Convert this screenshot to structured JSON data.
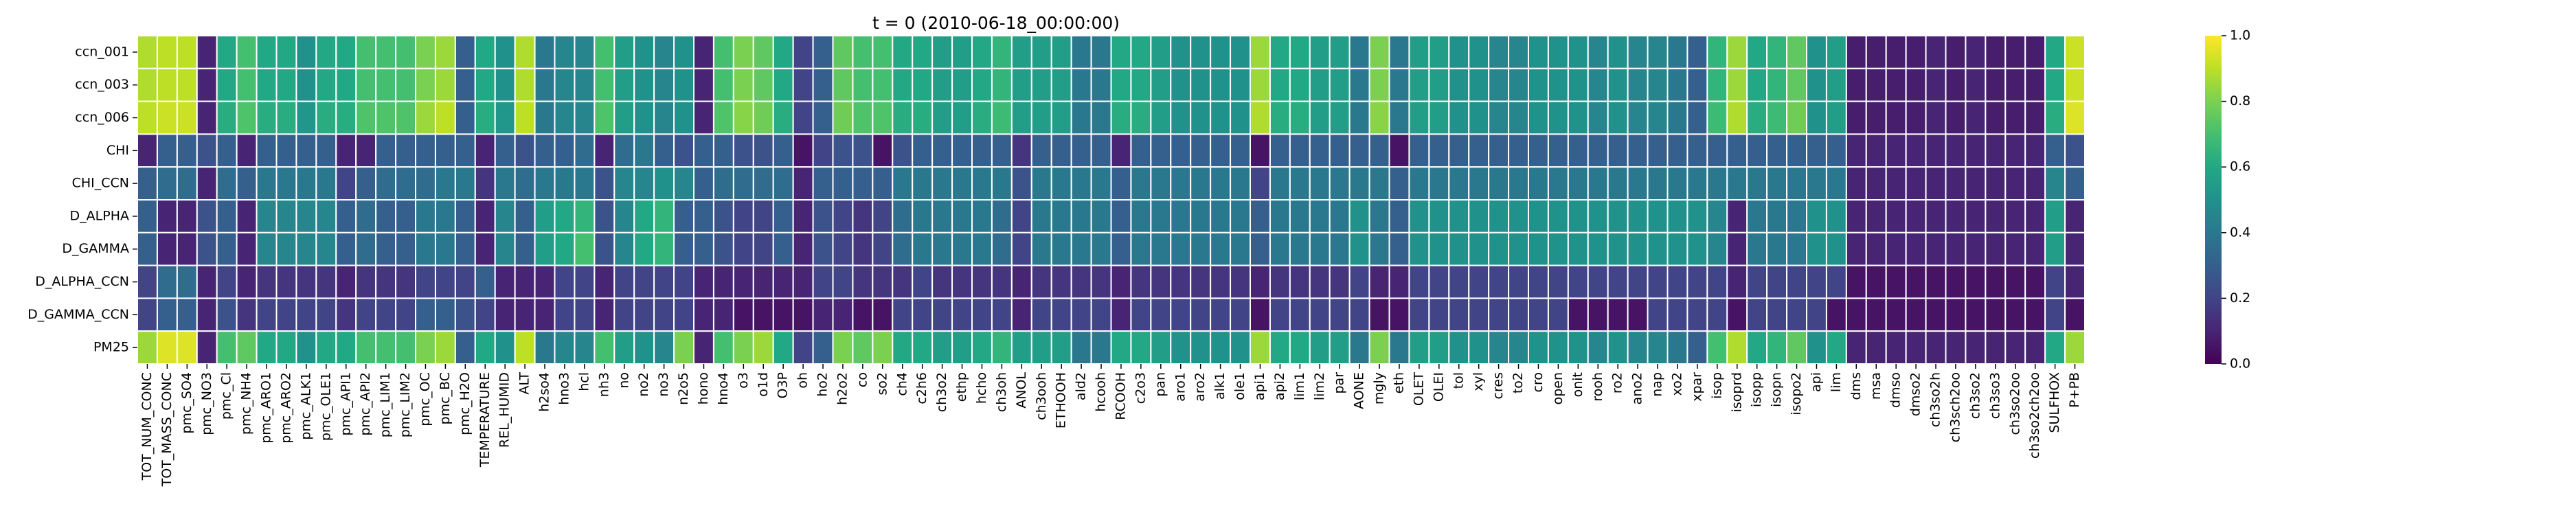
{
  "chart_data": {
    "type": "heatmap",
    "title": "t = 0 (2010-06-18_00:00:00)",
    "rows": [
      "ccn_001",
      "ccn_003",
      "ccn_006",
      "CHI",
      "CHI_CCN",
      "D_ALPHA",
      "D_GAMMA",
      "D_ALPHA_CCN",
      "D_GAMMA_CCN",
      "PM25"
    ],
    "columns": [
      "TOT_NUM_CONC",
      "TOT_MASS_CONC",
      "pmc_SO4",
      "pmc_NO3",
      "pmc_Cl",
      "pmc_NH4",
      "pmc_ARO1",
      "pmc_ARO2",
      "pmc_ALK1",
      "pmc_OLE1",
      "pmc_API1",
      "pmc_API2",
      "pmc_LIM1",
      "pmc_LIM2",
      "pmc_OC",
      "pmc_BC",
      "pmc_H2O",
      "TEMPERATURE",
      "REL_HUMID",
      "ALT",
      "h2so4",
      "hno3",
      "hcl",
      "nh3",
      "no",
      "no2",
      "no3",
      "n2o5",
      "hono",
      "hno4",
      "o3",
      "o1d",
      "O3P",
      "oh",
      "ho2",
      "h2o2",
      "co",
      "so2",
      "ch4",
      "c2h6",
      "ch3o2",
      "ethp",
      "hcho",
      "ch3oh",
      "ANOL",
      "ch3ooh",
      "ETHOOH",
      "ald2",
      "hcooh",
      "RCOOH",
      "c2o3",
      "pan",
      "aro1",
      "aro2",
      "alk1",
      "ole1",
      "api1",
      "api2",
      "lim1",
      "lim2",
      "par",
      "AONE",
      "mgly",
      "eth",
      "OLET",
      "OLEI",
      "tol",
      "xyl",
      "cres",
      "to2",
      "cro",
      "open",
      "onit",
      "rooh",
      "ro2",
      "ano2",
      "nap",
      "xo2",
      "xpar",
      "isop",
      "isoprd",
      "isopp",
      "isopn",
      "isopo2",
      "api",
      "lim",
      "dms",
      "msa",
      "dmso",
      "dmso2",
      "ch3so2h",
      "ch3sch2oo",
      "ch3so2",
      "ch3so3",
      "ch3so2oo",
      "ch3so2ch2oo",
      "SULFHOX",
      "P+PB"
    ],
    "values": [
      [
        0.88,
        0.9,
        0.9,
        0.1,
        0.6,
        0.7,
        0.6,
        0.6,
        0.5,
        0.6,
        0.6,
        0.7,
        0.7,
        0.7,
        0.8,
        0.85,
        0.3,
        0.6,
        0.5,
        0.88,
        0.4,
        0.45,
        0.45,
        0.7,
        0.55,
        0.5,
        0.45,
        0.5,
        0.1,
        0.7,
        0.8,
        0.75,
        0.6,
        0.2,
        0.3,
        0.75,
        0.7,
        0.7,
        0.6,
        0.6,
        0.55,
        0.55,
        0.6,
        0.65,
        0.55,
        0.55,
        0.55,
        0.4,
        0.4,
        0.6,
        0.6,
        0.55,
        0.5,
        0.5,
        0.5,
        0.5,
        0.85,
        0.6,
        0.6,
        0.55,
        0.55,
        0.4,
        0.8,
        0.4,
        0.55,
        0.55,
        0.5,
        0.5,
        0.45,
        0.45,
        0.5,
        0.5,
        0.5,
        0.45,
        0.5,
        0.45,
        0.45,
        0.4,
        0.3,
        0.65,
        0.85,
        0.6,
        0.65,
        0.75,
        0.5,
        0.55,
        0.08,
        0.08,
        0.08,
        0.08,
        0.1,
        0.08,
        0.1,
        0.08,
        0.08,
        0.08,
        0.6,
        0.92
      ],
      [
        0.88,
        0.9,
        0.9,
        0.1,
        0.6,
        0.7,
        0.6,
        0.6,
        0.5,
        0.6,
        0.6,
        0.7,
        0.7,
        0.7,
        0.8,
        0.85,
        0.3,
        0.6,
        0.5,
        0.88,
        0.4,
        0.45,
        0.45,
        0.7,
        0.55,
        0.5,
        0.45,
        0.5,
        0.1,
        0.7,
        0.8,
        0.75,
        0.6,
        0.2,
        0.3,
        0.75,
        0.7,
        0.7,
        0.6,
        0.6,
        0.55,
        0.55,
        0.6,
        0.65,
        0.55,
        0.55,
        0.55,
        0.4,
        0.4,
        0.6,
        0.6,
        0.55,
        0.5,
        0.5,
        0.5,
        0.5,
        0.85,
        0.6,
        0.6,
        0.55,
        0.55,
        0.4,
        0.8,
        0.4,
        0.55,
        0.55,
        0.5,
        0.5,
        0.45,
        0.45,
        0.5,
        0.5,
        0.5,
        0.45,
        0.5,
        0.45,
        0.45,
        0.4,
        0.3,
        0.65,
        0.85,
        0.6,
        0.65,
        0.75,
        0.5,
        0.55,
        0.08,
        0.08,
        0.08,
        0.08,
        0.1,
        0.08,
        0.1,
        0.08,
        0.08,
        0.08,
        0.6,
        0.92
      ],
      [
        0.9,
        0.92,
        0.92,
        0.1,
        0.62,
        0.72,
        0.62,
        0.62,
        0.52,
        0.62,
        0.62,
        0.72,
        0.72,
        0.72,
        0.85,
        0.9,
        0.3,
        0.62,
        0.52,
        0.9,
        0.4,
        0.45,
        0.45,
        0.72,
        0.55,
        0.5,
        0.45,
        0.5,
        0.1,
        0.72,
        0.82,
        0.78,
        0.62,
        0.2,
        0.3,
        0.78,
        0.72,
        0.72,
        0.62,
        0.62,
        0.55,
        0.55,
        0.62,
        0.68,
        0.55,
        0.55,
        0.55,
        0.4,
        0.4,
        0.62,
        0.62,
        0.55,
        0.5,
        0.5,
        0.5,
        0.5,
        0.88,
        0.62,
        0.62,
        0.55,
        0.55,
        0.4,
        0.82,
        0.4,
        0.55,
        0.55,
        0.5,
        0.5,
        0.45,
        0.45,
        0.5,
        0.5,
        0.5,
        0.45,
        0.5,
        0.45,
        0.45,
        0.4,
        0.3,
        0.68,
        0.88,
        0.62,
        0.68,
        0.78,
        0.5,
        0.55,
        0.08,
        0.08,
        0.08,
        0.08,
        0.1,
        0.08,
        0.1,
        0.08,
        0.08,
        0.08,
        0.62,
        0.95
      ],
      [
        0.1,
        0.3,
        0.3,
        0.25,
        0.3,
        0.1,
        0.3,
        0.3,
        0.3,
        0.3,
        0.1,
        0.1,
        0.3,
        0.3,
        0.3,
        0.3,
        0.3,
        0.1,
        0.3,
        0.25,
        0.3,
        0.3,
        0.35,
        0.1,
        0.35,
        0.4,
        0.3,
        0.25,
        0.3,
        0.3,
        0.25,
        0.25,
        0.3,
        0.05,
        0.2,
        0.25,
        0.25,
        0.05,
        0.25,
        0.3,
        0.3,
        0.3,
        0.3,
        0.3,
        0.15,
        0.3,
        0.3,
        0.3,
        0.3,
        0.1,
        0.3,
        0.3,
        0.3,
        0.3,
        0.3,
        0.3,
        0.05,
        0.3,
        0.3,
        0.3,
        0.3,
        0.3,
        0.3,
        0.05,
        0.3,
        0.3,
        0.3,
        0.3,
        0.3,
        0.3,
        0.3,
        0.3,
        0.3,
        0.3,
        0.3,
        0.3,
        0.3,
        0.3,
        0.3,
        0.3,
        0.3,
        0.3,
        0.3,
        0.3,
        0.3,
        0.3,
        0.1,
        0.1,
        0.1,
        0.1,
        0.1,
        0.1,
        0.1,
        0.1,
        0.1,
        0.1,
        0.3,
        0.25
      ],
      [
        0.3,
        0.35,
        0.35,
        0.1,
        0.35,
        0.3,
        0.4,
        0.4,
        0.4,
        0.4,
        0.2,
        0.3,
        0.35,
        0.35,
        0.35,
        0.4,
        0.4,
        0.15,
        0.4,
        0.35,
        0.4,
        0.4,
        0.4,
        0.25,
        0.45,
        0.45,
        0.5,
        0.45,
        0.3,
        0.35,
        0.35,
        0.35,
        0.35,
        0.1,
        0.3,
        0.3,
        0.3,
        0.3,
        0.4,
        0.4,
        0.4,
        0.4,
        0.4,
        0.4,
        0.25,
        0.4,
        0.4,
        0.4,
        0.4,
        0.3,
        0.4,
        0.4,
        0.4,
        0.4,
        0.4,
        0.4,
        0.2,
        0.4,
        0.4,
        0.4,
        0.4,
        0.4,
        0.4,
        0.3,
        0.4,
        0.4,
        0.4,
        0.4,
        0.4,
        0.4,
        0.4,
        0.4,
        0.4,
        0.4,
        0.4,
        0.4,
        0.4,
        0.4,
        0.4,
        0.4,
        0.4,
        0.4,
        0.4,
        0.4,
        0.4,
        0.4,
        0.1,
        0.1,
        0.1,
        0.1,
        0.1,
        0.1,
        0.1,
        0.1,
        0.1,
        0.1,
        0.45,
        0.3
      ],
      [
        0.3,
        0.1,
        0.1,
        0.25,
        0.3,
        0.1,
        0.45,
        0.45,
        0.45,
        0.45,
        0.3,
        0.35,
        0.3,
        0.3,
        0.4,
        0.4,
        0.3,
        0.1,
        0.45,
        0.3,
        0.55,
        0.6,
        0.65,
        0.25,
        0.45,
        0.6,
        0.65,
        0.3,
        0.3,
        0.25,
        0.2,
        0.2,
        0.3,
        0.1,
        0.25,
        0.2,
        0.15,
        0.2,
        0.35,
        0.4,
        0.4,
        0.4,
        0.4,
        0.35,
        0.2,
        0.4,
        0.4,
        0.4,
        0.4,
        0.3,
        0.4,
        0.4,
        0.4,
        0.4,
        0.4,
        0.4,
        0.3,
        0.4,
        0.4,
        0.4,
        0.4,
        0.5,
        0.4,
        0.3,
        0.5,
        0.5,
        0.5,
        0.5,
        0.5,
        0.5,
        0.5,
        0.5,
        0.5,
        0.5,
        0.5,
        0.5,
        0.5,
        0.5,
        0.5,
        0.45,
        0.1,
        0.4,
        0.4,
        0.4,
        0.5,
        0.5,
        0.1,
        0.1,
        0.1,
        0.1,
        0.1,
        0.1,
        0.1,
        0.1,
        0.1,
        0.1,
        0.55,
        0.1
      ],
      [
        0.3,
        0.1,
        0.1,
        0.25,
        0.3,
        0.1,
        0.45,
        0.45,
        0.45,
        0.45,
        0.3,
        0.35,
        0.3,
        0.3,
        0.4,
        0.4,
        0.3,
        0.1,
        0.45,
        0.3,
        0.55,
        0.6,
        0.7,
        0.25,
        0.45,
        0.6,
        0.65,
        0.3,
        0.3,
        0.25,
        0.2,
        0.2,
        0.3,
        0.1,
        0.25,
        0.2,
        0.15,
        0.2,
        0.35,
        0.4,
        0.4,
        0.4,
        0.4,
        0.35,
        0.2,
        0.4,
        0.4,
        0.4,
        0.4,
        0.3,
        0.4,
        0.4,
        0.4,
        0.4,
        0.4,
        0.4,
        0.3,
        0.4,
        0.4,
        0.4,
        0.4,
        0.5,
        0.4,
        0.3,
        0.5,
        0.5,
        0.5,
        0.5,
        0.5,
        0.5,
        0.5,
        0.5,
        0.5,
        0.5,
        0.5,
        0.5,
        0.5,
        0.5,
        0.5,
        0.45,
        0.1,
        0.4,
        0.4,
        0.4,
        0.5,
        0.5,
        0.1,
        0.1,
        0.1,
        0.1,
        0.1,
        0.1,
        0.1,
        0.1,
        0.1,
        0.1,
        0.55,
        0.1
      ],
      [
        0.2,
        0.35,
        0.35,
        0.1,
        0.2,
        0.1,
        0.15,
        0.15,
        0.15,
        0.15,
        0.1,
        0.15,
        0.15,
        0.15,
        0.2,
        0.2,
        0.2,
        0.3,
        0.1,
        0.1,
        0.1,
        0.2,
        0.2,
        0.1,
        0.2,
        0.2,
        0.2,
        0.2,
        0.1,
        0.1,
        0.1,
        0.1,
        0.1,
        0.1,
        0.2,
        0.2,
        0.15,
        0.15,
        0.15,
        0.2,
        0.15,
        0.15,
        0.15,
        0.15,
        0.1,
        0.15,
        0.15,
        0.15,
        0.15,
        0.1,
        0.15,
        0.15,
        0.15,
        0.15,
        0.15,
        0.15,
        0.1,
        0.15,
        0.15,
        0.15,
        0.15,
        0.2,
        0.1,
        0.1,
        0.2,
        0.2,
        0.2,
        0.2,
        0.2,
        0.2,
        0.2,
        0.2,
        0.2,
        0.2,
        0.2,
        0.2,
        0.2,
        0.2,
        0.2,
        0.2,
        0.1,
        0.2,
        0.2,
        0.2,
        0.2,
        0.2,
        0.05,
        0.05,
        0.05,
        0.05,
        0.05,
        0.05,
        0.05,
        0.05,
        0.05,
        0.05,
        0.2,
        0.1
      ],
      [
        0.2,
        0.3,
        0.3,
        0.1,
        0.25,
        0.15,
        0.2,
        0.2,
        0.2,
        0.2,
        0.15,
        0.2,
        0.2,
        0.2,
        0.3,
        0.3,
        0.25,
        0.2,
        0.1,
        0.1,
        0.1,
        0.2,
        0.2,
        0.1,
        0.2,
        0.2,
        0.2,
        0.2,
        0.1,
        0.1,
        0.05,
        0.05,
        0.05,
        0.05,
        0.1,
        0.1,
        0.05,
        0.05,
        0.2,
        0.2,
        0.2,
        0.2,
        0.2,
        0.2,
        0.1,
        0.2,
        0.2,
        0.2,
        0.2,
        0.1,
        0.2,
        0.2,
        0.2,
        0.2,
        0.2,
        0.2,
        0.05,
        0.2,
        0.2,
        0.2,
        0.2,
        0.2,
        0.05,
        0.05,
        0.2,
        0.2,
        0.2,
        0.2,
        0.2,
        0.2,
        0.2,
        0.2,
        0.05,
        0.05,
        0.05,
        0.05,
        0.2,
        0.2,
        0.2,
        0.2,
        0.05,
        0.2,
        0.2,
        0.2,
        0.2,
        0.05,
        0.05,
        0.05,
        0.05,
        0.05,
        0.05,
        0.05,
        0.05,
        0.05,
        0.05,
        0.05,
        0.2,
        0.05
      ],
      [
        0.85,
        0.95,
        0.95,
        0.1,
        0.7,
        0.75,
        0.6,
        0.6,
        0.5,
        0.6,
        0.6,
        0.7,
        0.7,
        0.7,
        0.8,
        0.85,
        0.3,
        0.6,
        0.5,
        0.9,
        0.4,
        0.45,
        0.45,
        0.7,
        0.55,
        0.5,
        0.45,
        0.8,
        0.1,
        0.7,
        0.8,
        0.85,
        0.6,
        0.2,
        0.3,
        0.8,
        0.75,
        0.8,
        0.6,
        0.6,
        0.55,
        0.55,
        0.6,
        0.65,
        0.55,
        0.55,
        0.55,
        0.4,
        0.4,
        0.6,
        0.6,
        0.55,
        0.5,
        0.5,
        0.5,
        0.5,
        0.85,
        0.6,
        0.6,
        0.55,
        0.55,
        0.4,
        0.8,
        0.4,
        0.55,
        0.55,
        0.5,
        0.5,
        0.45,
        0.45,
        0.5,
        0.5,
        0.5,
        0.45,
        0.5,
        0.45,
        0.45,
        0.4,
        0.3,
        0.7,
        0.88,
        0.6,
        0.65,
        0.75,
        0.5,
        0.6,
        0.1,
        0.1,
        0.1,
        0.1,
        0.1,
        0.1,
        0.1,
        0.1,
        0.1,
        0.1,
        0.6,
        0.85
      ]
    ],
    "colorbar": {
      "min": 0.0,
      "max": 1.0,
      "ticks": [
        "0.0",
        "0.2",
        "0.4",
        "0.6",
        "0.8",
        "1.0"
      ],
      "colormap": "viridis"
    },
    "grid_line_color": "#ffffff"
  }
}
